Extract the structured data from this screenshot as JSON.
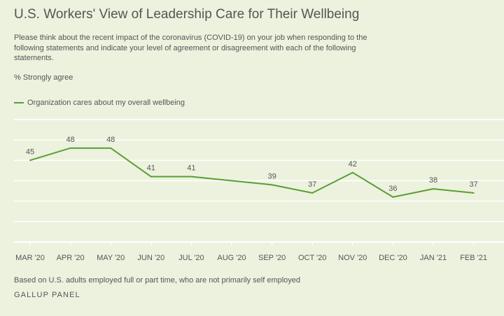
{
  "title": "U.S. Workers' View of Leadership Care for Their Wellbeing",
  "subtitle": "Please think about the recent impact of the coronavirus (COVID-19) on your job when responding to the following statements and indicate your level of agreement or disagreement with each of the following statements.",
  "measure": "% Strongly agree",
  "footnote": "Based on U.S. adults employed full or part time, who are not primarily self employed",
  "source": "GALLUP PANEL",
  "colors": {
    "series": "#5a9e35",
    "grid": "#ffffff",
    "background": "#ecf2de",
    "text": "#555555"
  },
  "chart_data": {
    "type": "line",
    "title": "U.S. Workers' View of Leadership Care for Their Wellbeing",
    "ylabel": "% Strongly agree",
    "xlabel": "",
    "categories": [
      "MAR '20",
      "APR '20",
      "MAY '20",
      "JUN '20",
      "JUL '20",
      "AUG '20",
      "SEP '20",
      "OCT '20",
      "NOV '20",
      "DEC '20",
      "JAN '21",
      "FEB '21"
    ],
    "ylim": [
      25,
      55
    ],
    "grid": true,
    "legend_position": "top-left",
    "series": [
      {
        "name": "Organization cares about my overall wellbeing",
        "x": [
          "MAR '20",
          "APR '20",
          "MAY '20",
          "JUN '20",
          "JUL '20",
          "SEP '20",
          "OCT '20",
          "NOV '20",
          "DEC '20",
          "JAN '21",
          "FEB '21"
        ],
        "values": [
          45,
          48,
          48,
          41,
          41,
          39,
          37,
          42,
          36,
          38,
          37
        ],
        "labels": [
          "45",
          "48",
          "48",
          "41",
          "41",
          "39",
          "37",
          "42",
          "36",
          "38",
          "37"
        ]
      }
    ]
  }
}
